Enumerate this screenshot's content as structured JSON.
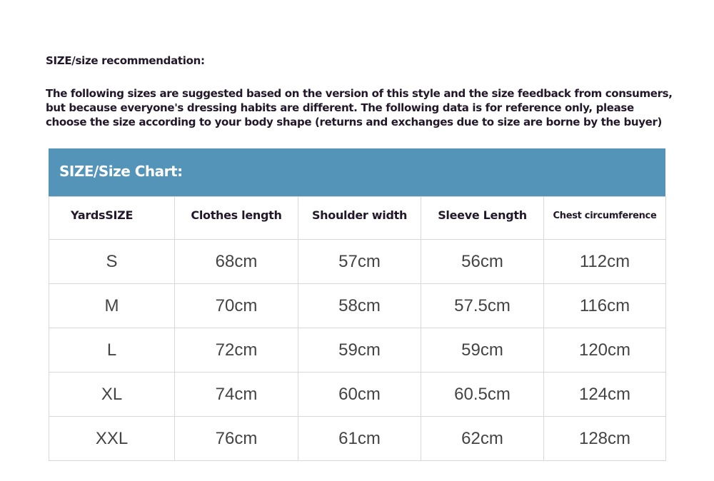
{
  "title": "SIZE/size recommendation:",
  "intro_lines": [
    "The following sizes are suggested based on the version of this style and the size feedback from consumers,",
    "but because everyone's dressing habits are different. The following data is for reference only, please",
    "choose the size according to your body shape (returns and exchanges due to size are borne by the buyer)"
  ],
  "chart_title": "SIZE/Size Chart:",
  "header_color": "#5594b9",
  "columns": [
    "YardsSIZE",
    "Clothes length",
    "Shoulder width",
    "Sleeve Length",
    "Chest circumference"
  ],
  "rows": [
    [
      "S",
      "68cm",
      "57cm",
      "56cm",
      "112cm"
    ],
    [
      "M",
      "70cm",
      "58cm",
      "57.5cm",
      "116cm"
    ],
    [
      "L",
      "72cm",
      "59cm",
      "59cm",
      "120cm"
    ],
    [
      "XL",
      "74cm",
      "60cm",
      "60.5cm",
      "124cm"
    ],
    [
      "XXL",
      "76cm",
      "61cm",
      "62cm",
      "128cm"
    ]
  ]
}
